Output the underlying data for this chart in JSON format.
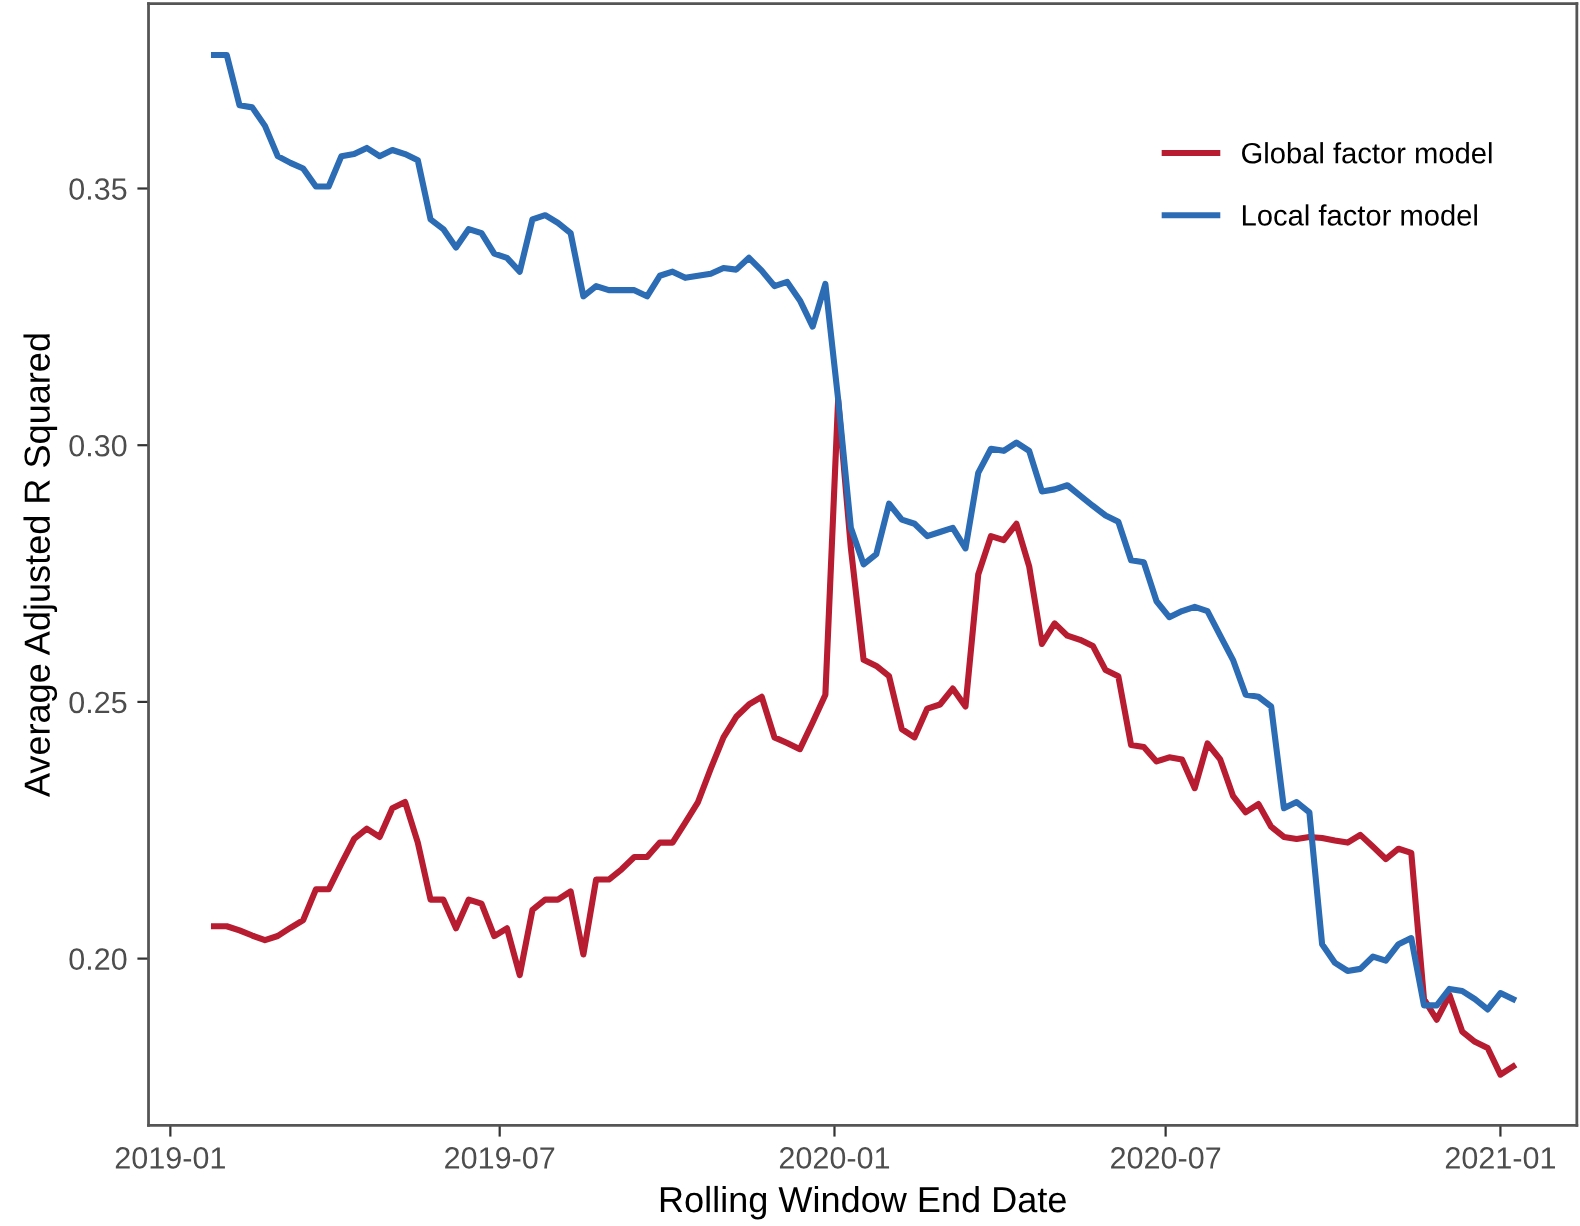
{
  "chart_data": {
    "type": "line",
    "xlabel": "Rolling Window End Date",
    "ylabel": "Average Adjusted R Squared",
    "x": [
      "2019-01-25",
      "2019-02-01",
      "2019-02-08",
      "2019-02-15",
      "2019-02-22",
      "2019-03-01",
      "2019-03-08",
      "2019-03-15",
      "2019-03-22",
      "2019-03-29",
      "2019-04-05",
      "2019-04-12",
      "2019-04-19",
      "2019-04-26",
      "2019-05-03",
      "2019-05-10",
      "2019-05-17",
      "2019-05-24",
      "2019-05-31",
      "2019-06-07",
      "2019-06-14",
      "2019-06-21",
      "2019-06-28",
      "2019-07-05",
      "2019-07-12",
      "2019-07-19",
      "2019-07-26",
      "2019-08-02",
      "2019-08-09",
      "2019-08-16",
      "2019-08-23",
      "2019-08-30",
      "2019-09-06",
      "2019-09-13",
      "2019-09-20",
      "2019-09-27",
      "2019-10-04",
      "2019-10-11",
      "2019-10-18",
      "2019-10-25",
      "2019-11-01",
      "2019-11-08",
      "2019-11-15",
      "2019-11-22",
      "2019-11-29",
      "2019-12-06",
      "2019-12-13",
      "2019-12-20",
      "2019-12-27",
      "2020-01-03",
      "2020-01-10",
      "2020-01-17",
      "2020-01-24",
      "2020-01-31",
      "2020-02-07",
      "2020-02-14",
      "2020-02-21",
      "2020-02-28",
      "2020-03-06",
      "2020-03-13",
      "2020-03-20",
      "2020-03-27",
      "2020-04-03",
      "2020-04-10",
      "2020-04-17",
      "2020-04-24",
      "2020-05-01",
      "2020-05-08",
      "2020-05-15",
      "2020-05-22",
      "2020-05-29",
      "2020-06-05",
      "2020-06-12",
      "2020-06-19",
      "2020-06-26",
      "2020-07-03",
      "2020-07-10",
      "2020-07-17",
      "2020-07-24",
      "2020-07-31",
      "2020-08-07",
      "2020-08-14",
      "2020-08-21",
      "2020-08-28",
      "2020-09-04",
      "2020-09-11",
      "2020-09-18",
      "2020-09-25",
      "2020-10-02",
      "2020-10-09",
      "2020-10-16",
      "2020-10-23",
      "2020-10-30",
      "2020-11-06",
      "2020-11-13",
      "2020-11-20",
      "2020-11-27",
      "2020-12-04",
      "2020-12-11",
      "2020-12-18",
      "2020-12-25",
      "2021-01-01",
      "2021-01-08"
    ],
    "series": [
      {
        "name": "Global factor model",
        "color": "#b71c30",
        "values": [
          0.2063,
          0.2063,
          0.2055,
          0.2045,
          0.2036,
          0.2044,
          0.206,
          0.2075,
          0.2135,
          0.2135,
          0.2185,
          0.2233,
          0.2253,
          0.2237,
          0.2293,
          0.2305,
          0.2226,
          0.2115,
          0.2115,
          0.2059,
          0.2115,
          0.2107,
          0.2044,
          0.2059,
          0.1968,
          0.2095,
          0.2115,
          0.2115,
          0.2131,
          0.2008,
          0.2154,
          0.2154,
          0.2174,
          0.2198,
          0.2198,
          0.2226,
          0.2226,
          0.2265,
          0.2305,
          0.237,
          0.2431,
          0.2471,
          0.2495,
          0.251,
          0.2431,
          0.242,
          0.2408,
          0.246,
          0.2514,
          0.3088,
          0.28,
          0.2582,
          0.257,
          0.255,
          0.2447,
          0.2431,
          0.2487,
          0.2495,
          0.2526,
          0.2491,
          0.2748,
          0.2823,
          0.2815,
          0.2847,
          0.2764,
          0.2613,
          0.2653,
          0.2629,
          0.2621,
          0.2609,
          0.2562,
          0.255,
          0.2416,
          0.2412,
          0.2384,
          0.2392,
          0.2388,
          0.2332,
          0.2419,
          0.2388,
          0.2317,
          0.2285,
          0.2301,
          0.2257,
          0.2237,
          0.2233,
          0.2237,
          0.2235,
          0.223,
          0.2226,
          0.2241,
          0.2218,
          0.2194,
          0.2214,
          0.2206,
          0.1921,
          0.1881,
          0.1929,
          0.1858,
          0.1838,
          0.1826,
          0.1774,
          0.179
        ]
      },
      {
        "name": "Local factor model",
        "color": "#2b6cb5",
        "values": [
          0.376,
          0.376,
          0.3662,
          0.3658,
          0.3622,
          0.3563,
          0.355,
          0.3539,
          0.3504,
          0.3504,
          0.3563,
          0.3567,
          0.3579,
          0.3563,
          0.3575,
          0.3567,
          0.3555,
          0.344,
          0.3421,
          0.3385,
          0.3421,
          0.3413,
          0.3373,
          0.3365,
          0.3338,
          0.344,
          0.3448,
          0.3433,
          0.3413,
          0.329,
          0.331,
          0.3302,
          0.3302,
          0.3302,
          0.329,
          0.333,
          0.3338,
          0.3326,
          0.333,
          0.3334,
          0.3345,
          0.3342,
          0.3365,
          0.334,
          0.331,
          0.3318,
          0.3282,
          0.3231,
          0.3314,
          0.309,
          0.2839,
          0.2768,
          0.2788,
          0.2886,
          0.2855,
          0.2847,
          0.2823,
          0.2831,
          0.2839,
          0.2799,
          0.2946,
          0.2993,
          0.2989,
          0.3005,
          0.2989,
          0.291,
          0.2914,
          0.2922,
          0.2902,
          0.2882,
          0.2863,
          0.2851,
          0.2776,
          0.2772,
          0.2696,
          0.2665,
          0.2677,
          0.2685,
          0.2677,
          0.2629,
          0.2582,
          0.2514,
          0.251,
          0.2491,
          0.2293,
          0.2305,
          0.2285,
          0.2028,
          0.1992,
          0.1976,
          0.198,
          0.2004,
          0.1996,
          0.2028,
          0.204,
          0.1909,
          0.1909,
          0.1941,
          0.1937,
          0.1921,
          0.1901,
          0.1933,
          0.1921
        ]
      }
    ],
    "xlim": [
      "2018-12-20",
      "2021-02-12"
    ],
    "xticks": [
      {
        "value": "2019-01-01",
        "label": "2019-01"
      },
      {
        "value": "2019-07-01",
        "label": "2019-07"
      },
      {
        "value": "2020-01-01",
        "label": "2020-01"
      },
      {
        "value": "2020-07-01",
        "label": "2020-07"
      },
      {
        "value": "2021-01-01",
        "label": "2021-01"
      }
    ],
    "ylim": [
      0.1675,
      0.386
    ],
    "yticks": [
      {
        "value": 0.2,
        "label": "0.20"
      },
      {
        "value": 0.25,
        "label": "0.25"
      },
      {
        "value": 0.3,
        "label": "0.30"
      },
      {
        "value": 0.35,
        "label": "0.35"
      }
    ],
    "grid": false,
    "legend": "top right",
    "marker": "none",
    "line_style": "solid"
  }
}
